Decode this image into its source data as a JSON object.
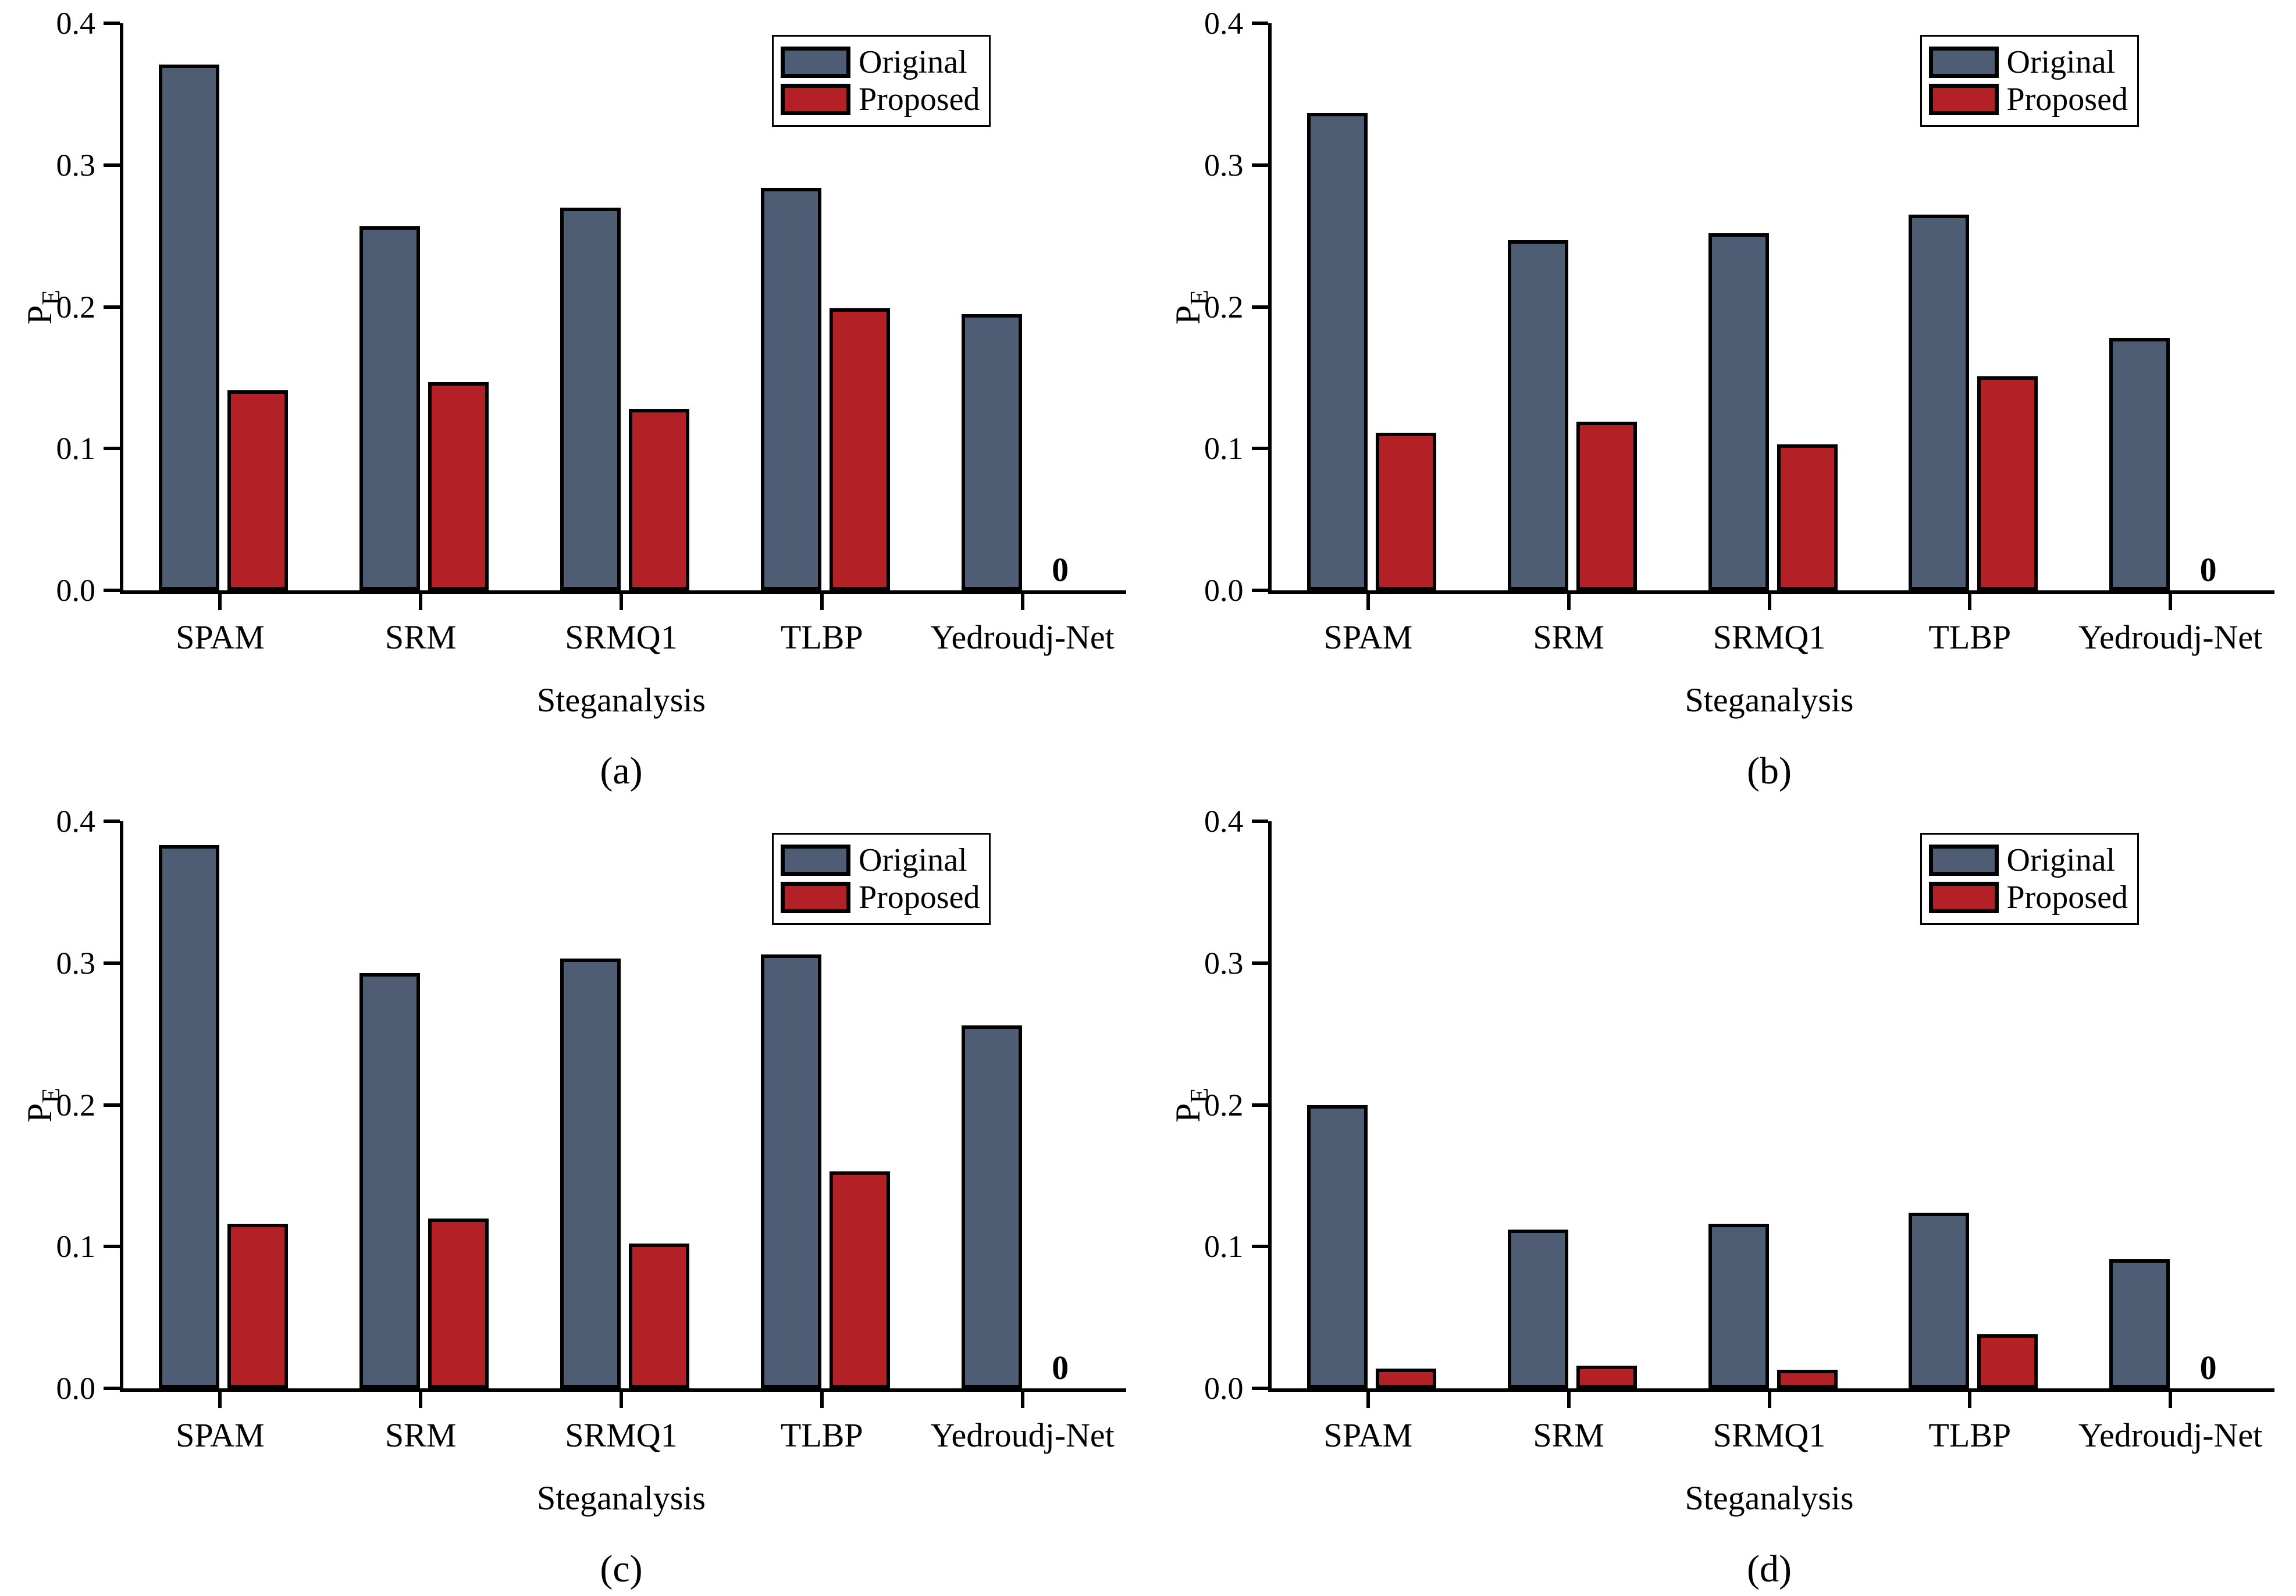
{
  "figure": {
    "legend": {
      "items": [
        {
          "label": "Original",
          "color": "#4E5C74"
        },
        {
          "label": "Proposed",
          "color": "#B32127"
        }
      ]
    }
  },
  "colors": {
    "original": "#4E5C74",
    "proposed": "#B32127",
    "axis": "#000000",
    "background": "#FFFFFF"
  },
  "chart_data": [
    {
      "type": "bar",
      "caption": "(a)",
      "xlabel": "Steganalysis",
      "ylabel": "P_E",
      "ylim": [
        0,
        0.4
      ],
      "y_ticks": [
        "0.0",
        "0.1",
        "0.2",
        "0.3",
        "0.4"
      ],
      "grid": false,
      "legend_position": "top-right",
      "categories": [
        "SPAM",
        "SRM",
        "SRMQ1",
        "TLBP",
        "Yedroudj-Net"
      ],
      "series": [
        {
          "name": "Original",
          "color": "#4E5C74",
          "values": [
            0.371,
            0.257,
            0.27,
            0.284,
            0.195
          ]
        },
        {
          "name": "Proposed",
          "color": "#B32127",
          "values": [
            0.141,
            0.147,
            0.128,
            0.199,
            0
          ]
        }
      ],
      "zero_annotation": {
        "text": "0",
        "category": "Yedroudj-Net",
        "series": "Proposed"
      }
    },
    {
      "type": "bar",
      "caption": "(b)",
      "xlabel": "Steganalysis",
      "ylabel": "P_E",
      "ylim": [
        0,
        0.4
      ],
      "y_ticks": [
        "0.0",
        "0.1",
        "0.2",
        "0.3",
        "0.4"
      ],
      "grid": false,
      "legend_position": "top-right",
      "categories": [
        "SPAM",
        "SRM",
        "SRMQ1",
        "TLBP",
        "Yedroudj-Net"
      ],
      "series": [
        {
          "name": "Original",
          "color": "#4E5C74",
          "values": [
            0.337,
            0.247,
            0.252,
            0.265,
            0.178
          ]
        },
        {
          "name": "Proposed",
          "color": "#B32127",
          "values": [
            0.111,
            0.119,
            0.103,
            0.151,
            0
          ]
        }
      ],
      "zero_annotation": {
        "text": "0",
        "category": "Yedroudj-Net",
        "series": "Proposed"
      }
    },
    {
      "type": "bar",
      "caption": "(c)",
      "xlabel": "Steganalysis",
      "ylabel": "P_E",
      "ylim": [
        0,
        0.4
      ],
      "y_ticks": [
        "0.0",
        "0.1",
        "0.2",
        "0.3",
        "0.4"
      ],
      "grid": false,
      "legend_position": "top-right",
      "categories": [
        "SPAM",
        "SRM",
        "SRMQ1",
        "TLBP",
        "Yedroudj-Net"
      ],
      "series": [
        {
          "name": "Original",
          "color": "#4E5C74",
          "values": [
            0.383,
            0.293,
            0.303,
            0.306,
            0.256
          ]
        },
        {
          "name": "Proposed",
          "color": "#B32127",
          "values": [
            0.116,
            0.12,
            0.102,
            0.153,
            0
          ]
        }
      ],
      "zero_annotation": {
        "text": "0",
        "category": "Yedroudj-Net",
        "series": "Proposed"
      }
    },
    {
      "type": "bar",
      "caption": "(d)",
      "xlabel": "Steganalysis",
      "ylabel": "P_E",
      "ylim": [
        0,
        0.4
      ],
      "y_ticks": [
        "0.0",
        "0.1",
        "0.2",
        "0.3",
        "0.4"
      ],
      "grid": false,
      "legend_position": "top-right",
      "categories": [
        "SPAM",
        "SRM",
        "SRMQ1",
        "TLBP",
        "Yedroudj-Net"
      ],
      "series": [
        {
          "name": "Original",
          "color": "#4E5C74",
          "values": [
            0.2,
            0.112,
            0.116,
            0.124,
            0.091
          ]
        },
        {
          "name": "Proposed",
          "color": "#B32127",
          "values": [
            0.014,
            0.016,
            0.013,
            0.038,
            0
          ]
        }
      ],
      "zero_annotation": {
        "text": "0",
        "category": "Yedroudj-Net",
        "series": "Proposed"
      }
    }
  ]
}
